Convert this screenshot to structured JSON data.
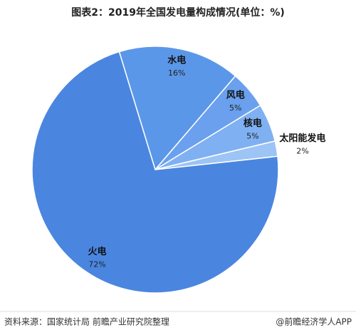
{
  "chart_data": {
    "type": "pie",
    "title": "图表2：2019年全国发电量构成情况(单位：%)",
    "categories": [
      "水电",
      "风电",
      "核电",
      "太阳能发电",
      "火电"
    ],
    "values": [
      16,
      5,
      5,
      2,
      72
    ],
    "value_labels": [
      "16%",
      "5%",
      "5%",
      "2%",
      "72%"
    ],
    "colors": [
      "#5b97e8",
      "#6aa0ee",
      "#7fb0f2",
      "#9cc4f5",
      "#4a86e0"
    ]
  },
  "footer": {
    "source": "资料来源：国家统计局 前瞻产业研究院整理",
    "credit": "@前瞻经济学人APP"
  }
}
